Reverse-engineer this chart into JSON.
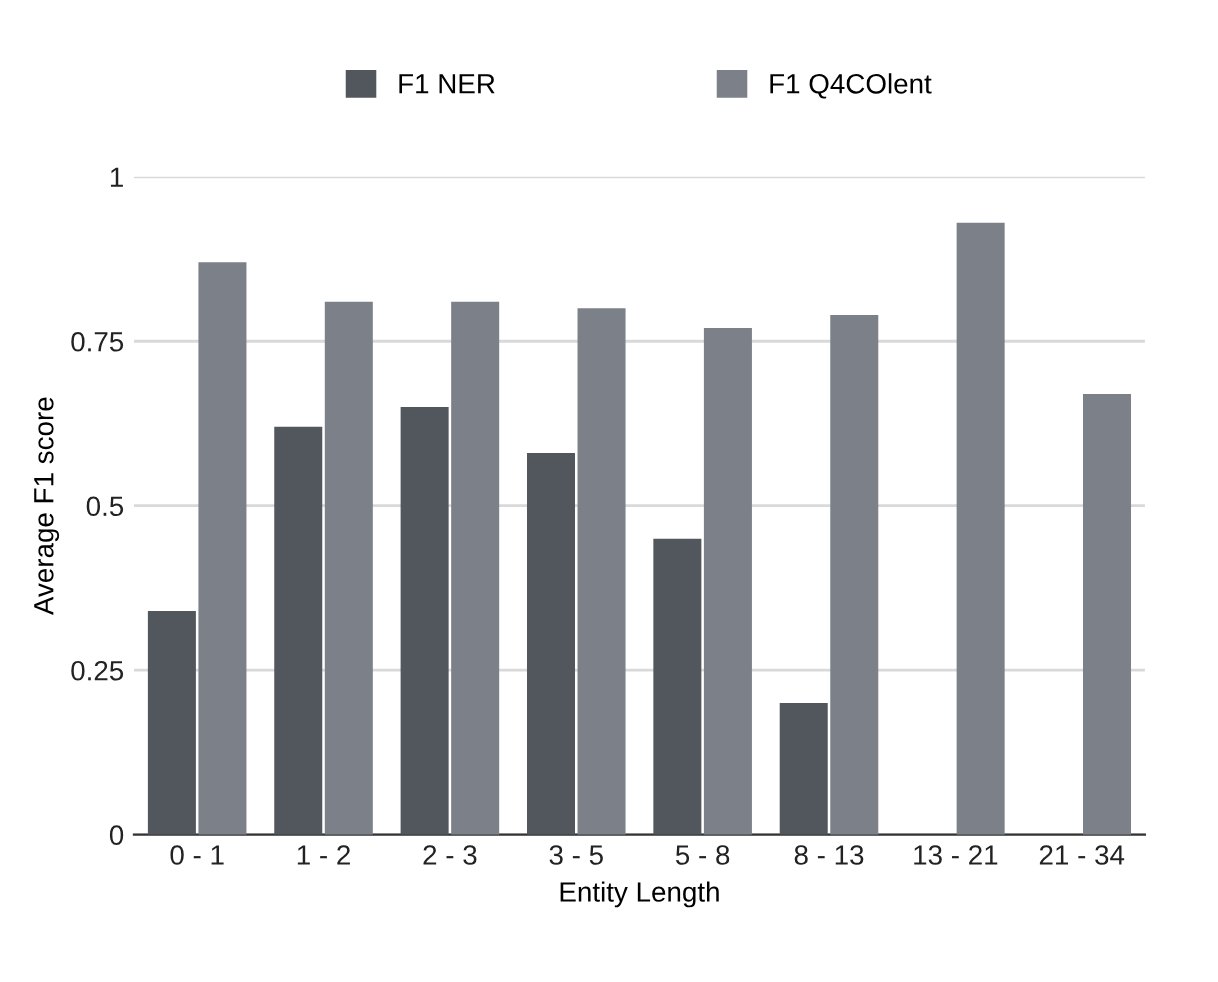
{
  "chart_data": {
    "type": "bar",
    "xlabel": "Entity Length",
    "ylabel": "Average F1 score",
    "categories": [
      "0 - 1",
      "1 - 2",
      "2 - 3",
      "3 - 5",
      "5 - 8",
      "8 - 13",
      "13 - 21",
      "21 - 34"
    ],
    "series": [
      {
        "name": "F1 NER",
        "color": "#52575d",
        "values": [
          0.34,
          0.62,
          0.65,
          0.58,
          0.45,
          0.2,
          0,
          0
        ]
      },
      {
        "name": "F1 Q4COlent",
        "color": "#7b8089",
        "values": [
          0.87,
          0.81,
          0.81,
          0.8,
          0.77,
          0.79,
          0.93,
          0.67
        ]
      }
    ],
    "ylim": [
      0,
      1
    ],
    "yticks": [
      0,
      {
        "value": 0.25,
        "label": "0.25"
      },
      {
        "value": 0.5,
        "label": "0.5"
      },
      {
        "value": 0.75,
        "label": "0.75"
      },
      1
    ],
    "grid": "y",
    "legend": "top"
  }
}
